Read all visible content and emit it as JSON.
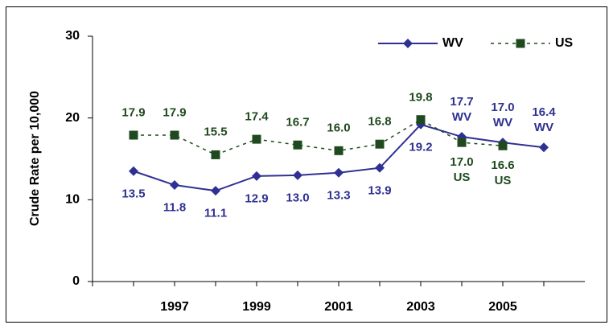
{
  "chart_data": {
    "type": "line",
    "y_label": "Crude Rate per 10,000",
    "categories": [
      null,
      "1997",
      null,
      "1999",
      null,
      "2001",
      null,
      "2003",
      null,
      "2005",
      null
    ],
    "series": [
      {
        "name": "WV",
        "color": "#2e3192",
        "marker": "diamond",
        "dashed": false,
        "values": [
          13.5,
          11.8,
          11.1,
          12.9,
          13.0,
          13.3,
          13.9,
          19.2,
          17.7,
          17.0,
          16.4
        ],
        "value_labels": [
          "13.5",
          "11.8",
          "11.1",
          "12.9",
          "13.0",
          "13.3",
          "13.9",
          "19.2",
          "17.7\nWV",
          "17.0\nWV",
          "16.4\nWV"
        ]
      },
      {
        "name": "US",
        "color": "#1f4a1f",
        "marker": "square",
        "dashed": true,
        "values": [
          17.9,
          17.9,
          15.5,
          17.4,
          16.7,
          16.0,
          16.8,
          19.8,
          17.0,
          16.6,
          null
        ],
        "value_labels": [
          "17.9",
          "17.9",
          "15.5",
          "17.4",
          "16.7",
          "16.0",
          "16.8",
          "19.8",
          "17.0\nUS",
          "16.6\nUS",
          null
        ]
      }
    ],
    "ylim": [
      0,
      30
    ],
    "yticks": [
      0,
      10,
      20,
      30
    ],
    "grid": false,
    "legend": "top-right"
  }
}
